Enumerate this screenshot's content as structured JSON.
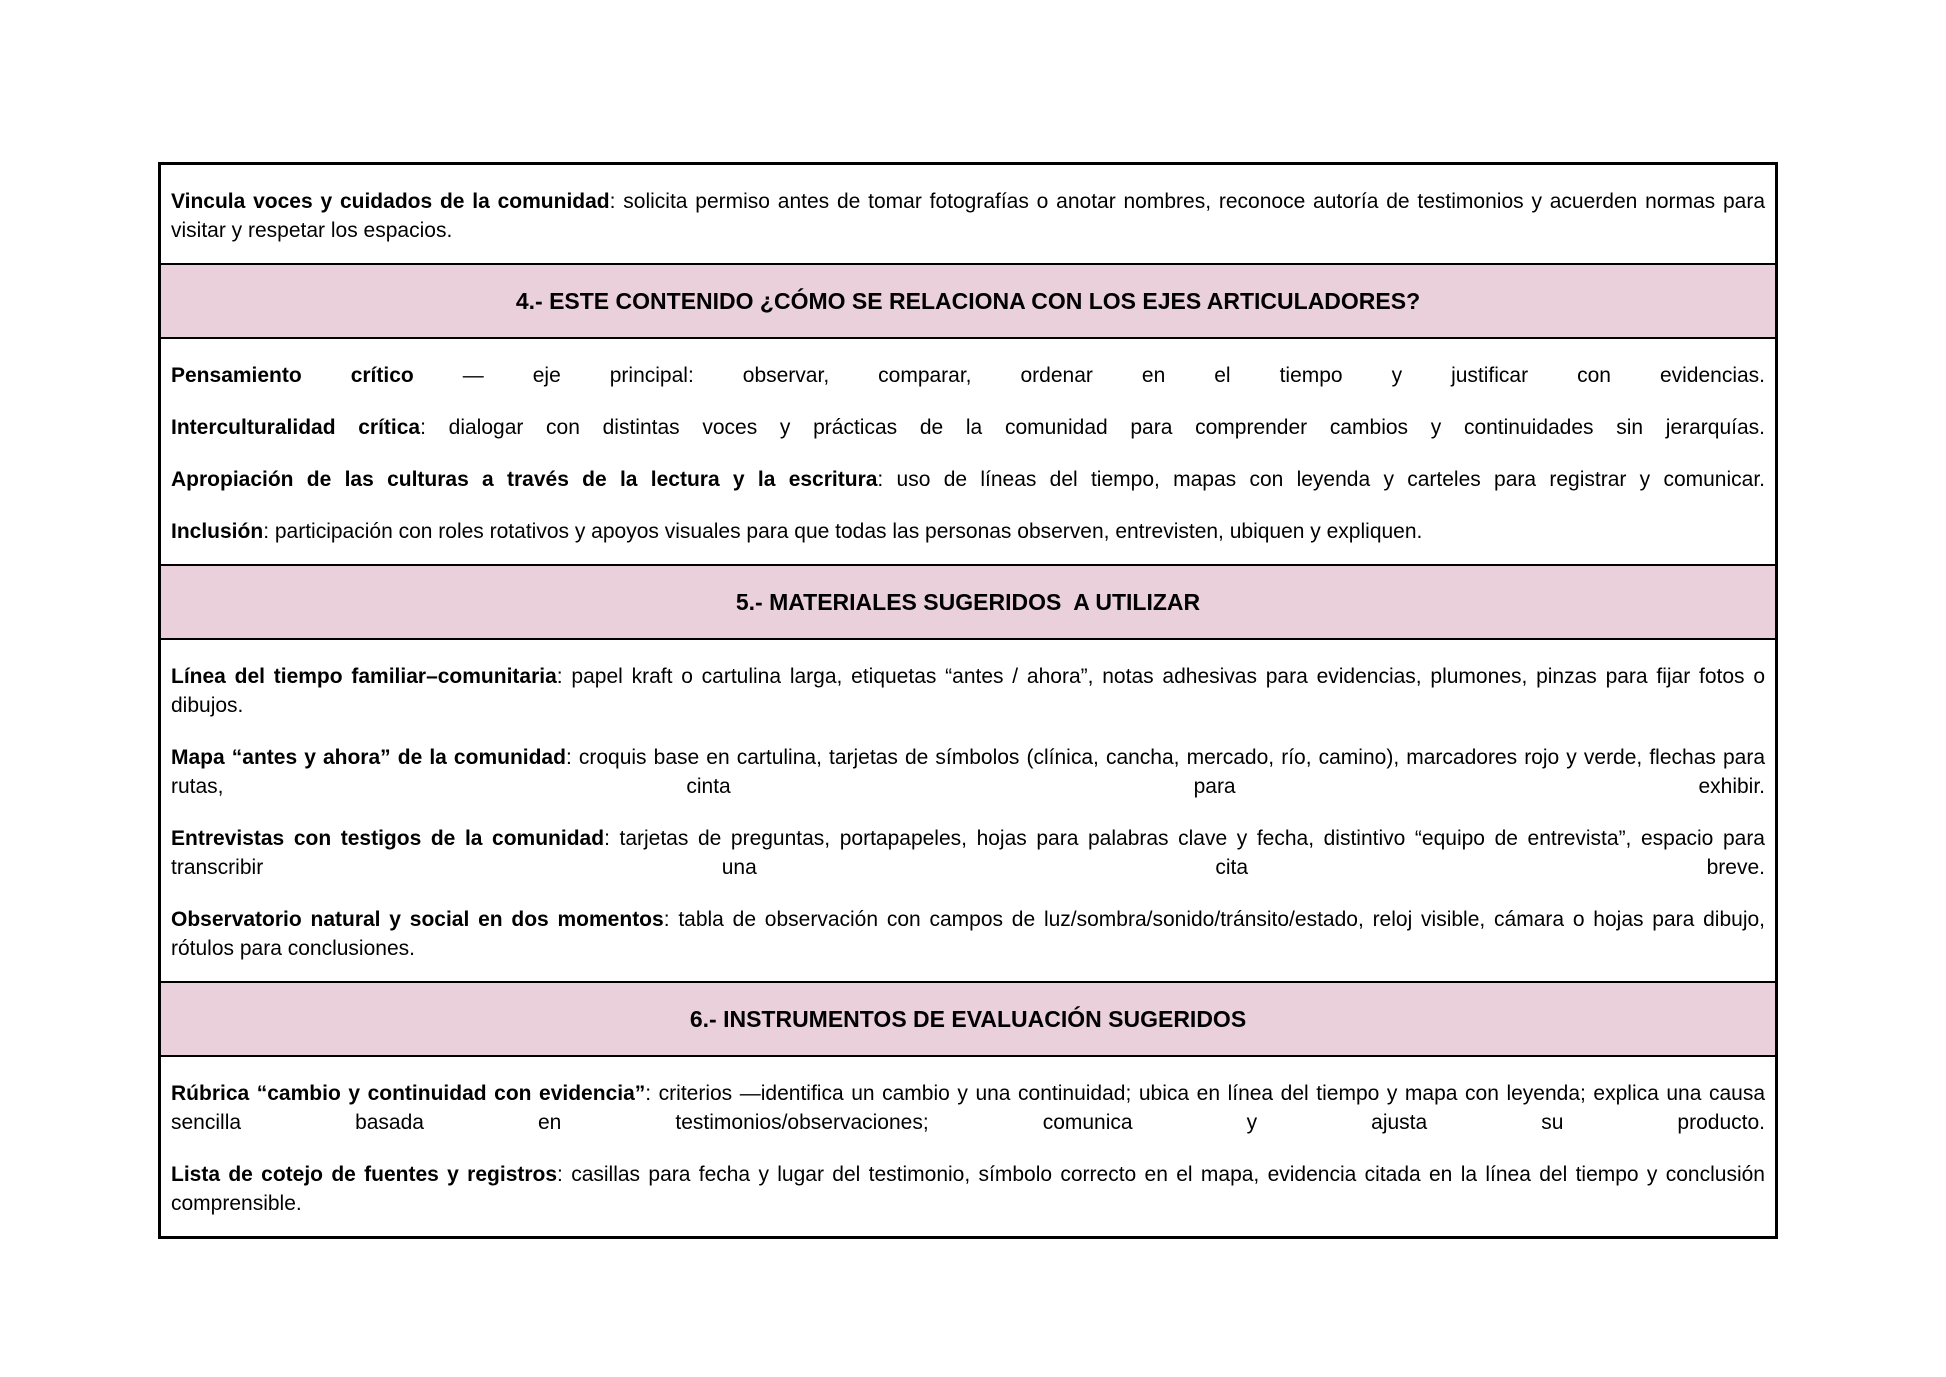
{
  "document": {
    "colors": {
      "page_background": "#ffffff",
      "header_row_background": "#e9d0db",
      "border": "#000000",
      "text": "#000000"
    },
    "rows": {
      "vincula": {
        "lead": "Vincula voces y cuidados de la comunidad",
        "rest": ": solicita permiso antes de tomar fotografías o anotar nombres, reconoce autoría de testimonios y acuerden normas para visitar y respetar los espacios."
      },
      "header4": "4.- ESTE CONTENIDO ¿CÓMO SE RELACIONA CON LOS EJES ARTICULADORES?",
      "ejes": [
        {
          "lead": "Pensamiento crítico",
          "rest": " — eje principal: observar, comparar, ordenar en el tiempo y justificar con evidencias."
        },
        {
          "lead": "Interculturalidad crítica",
          "rest": ": dialogar con distintas voces y prácticas de la comunidad para comprender cambios y continuidades sin jerarquías."
        },
        {
          "lead": "Apropiación de las culturas a través de la lectura y la escritura",
          "rest": ": uso de líneas del tiempo, mapas con leyenda y carteles para registrar y comunicar."
        },
        {
          "lead": "Inclusión",
          "rest": ": participación con roles rotativos y apoyos visuales para que todas las personas observen, entrevisten, ubiquen y expliquen."
        }
      ],
      "header5": "5.- MATERIALES SUGERIDOS  A UTILIZAR",
      "materiales": [
        {
          "lead": "Línea del tiempo familiar–comunitaria",
          "rest": ": papel kraft o cartulina larga, etiquetas “antes / ahora”, notas adhesivas para evidencias, plumones, pinzas para fijar fotos o dibujos."
        },
        {
          "lead": "Mapa “antes y ahora” de la comunidad",
          "rest": ": croquis base en cartulina, tarjetas de símbolos (clínica, cancha, mercado, río, camino), marcadores rojo y verde, flechas para rutas, cinta para exhibir."
        },
        {
          "lead": "Entrevistas con testigos de la comunidad",
          "rest": ": tarjetas de preguntas, portapapeles, hojas para palabras clave y fecha, distintivo “equipo de entrevista”, espacio para transcribir una cita breve."
        },
        {
          "lead": "Observatorio natural y social en dos momentos",
          "rest": ": tabla de observación con campos de luz/sombra/sonido/tránsito/estado, reloj visible, cámara o hojas para dibujo, rótulos para conclusiones."
        }
      ],
      "header6": "6.- INSTRUMENTOS DE EVALUACIÓN SUGERIDOS",
      "evaluacion": [
        {
          "lead": "Rúbrica “cambio y continuidad con evidencia”",
          "rest": ": criterios —identifica un cambio y una continuidad; ubica en línea del tiempo y mapa con leyenda; explica una causa sencilla basada en testimonios/observaciones; comunica y ajusta su producto."
        },
        {
          "lead": "Lista de cotejo de fuentes y registros",
          "rest": ": casillas para fecha y lugar del testimonio, símbolo correcto en el mapa, evidencia citada en la línea del tiempo y conclusión comprensible."
        }
      ]
    }
  }
}
